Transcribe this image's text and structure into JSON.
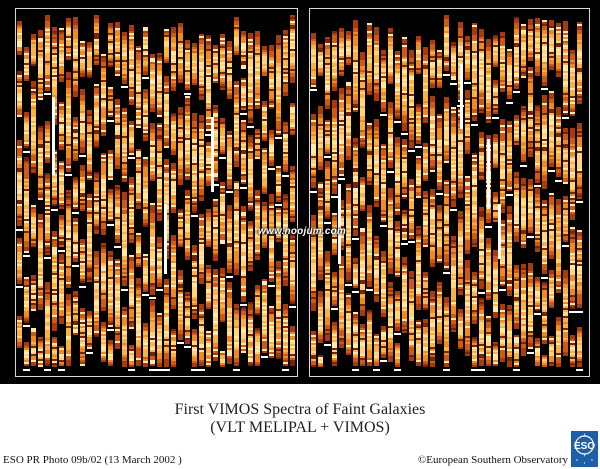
{
  "image": {
    "watermark": "www.noojum.com",
    "caption_title": "First VIMOS Spectra of Faint Galaxies",
    "caption_subtitle": "(VLT MELIPAL + VIMOS)",
    "photo_id": "ESO PR Photo 09b/02 (13 March 2002 )",
    "copyright": "©European Southern Observatory",
    "logo": "ESO"
  },
  "colors": {
    "background": "#000000",
    "spectra_hot": "#ffe9a8",
    "spectra_mid": "#f08a1c",
    "spectra_cool": "#7a2208",
    "panel_border": "#d9d9d9",
    "logo_blue": "#1f5fa8"
  }
}
